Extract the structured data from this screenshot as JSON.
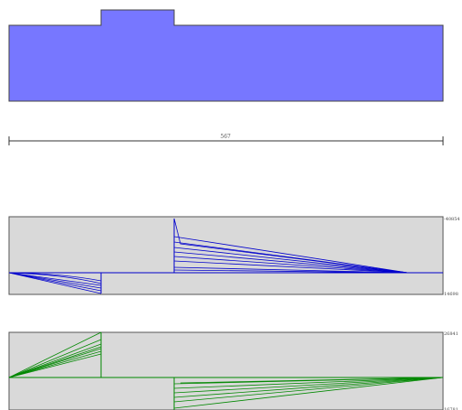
{
  "cross_section": {
    "fill": "#7777FF",
    "stroke": "#444444"
  },
  "dimension": {
    "length_label": "567"
  },
  "shear_diagram": {
    "background": "#D9D9D9",
    "line_color": "#0000CC",
    "top_label": "-40854",
    "bottom_label": "14698"
  },
  "moment_diagram": {
    "background": "#D9D9D9",
    "line_color": "#008800",
    "top_label": "26841",
    "bottom_label": "16781"
  }
}
